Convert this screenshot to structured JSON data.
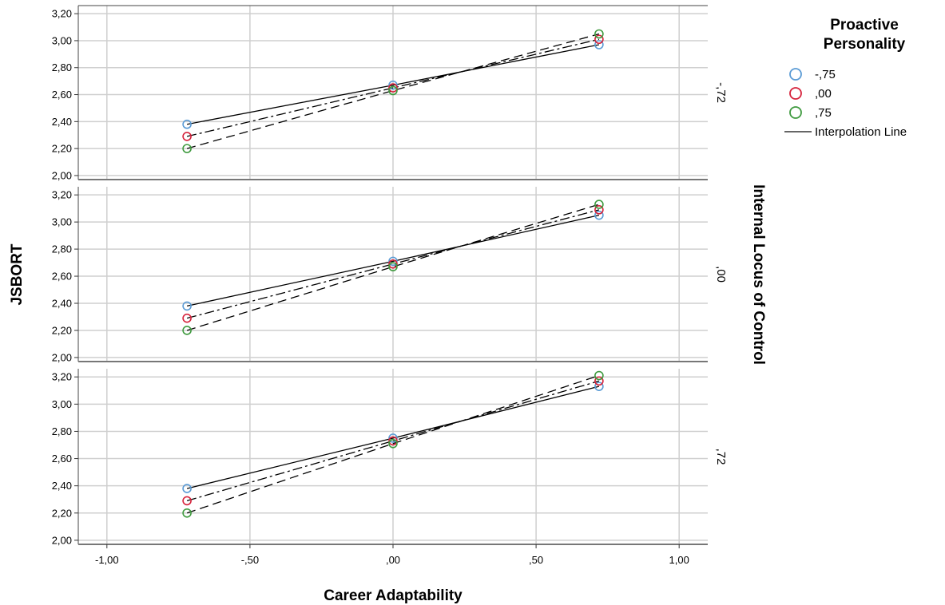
{
  "chart_data": {
    "type": "line",
    "xlabel": "Career Adaptability",
    "ylabel": "JSBORT",
    "panel_axis_label": "Internal Locus of Control",
    "xlim": [
      -1.1,
      1.1
    ],
    "ylim": [
      1.97,
      3.26
    ],
    "x_ticks": [
      -1.0,
      -0.5,
      0.0,
      0.5,
      1.0
    ],
    "x_tick_labels": [
      "-1,00",
      "-,50",
      ",00",
      ",50",
      "1,00"
    ],
    "y_ticks": [
      2.0,
      2.2,
      2.4,
      2.6,
      2.8,
      3.0,
      3.2
    ],
    "y_tick_labels": [
      "2,00",
      "2,20",
      "2,40",
      "2,60",
      "2,80",
      "3,00",
      "3,20"
    ],
    "grid": true,
    "legend": {
      "title": "Proactive Personality",
      "position": "right",
      "entries": [
        {
          "label": "-,75",
          "color": "#5b9bd5"
        },
        {
          "label": ",00",
          "color": "#d6233c"
        },
        {
          "label": ",75",
          "color": "#3f9a3f"
        }
      ],
      "line_label": "Interpolation Line"
    },
    "panels": [
      {
        "label": "-,72",
        "x": [
          -0.72,
          0.0,
          0.72
        ],
        "series": [
          {
            "name": "-,75",
            "values": [
              2.38,
              2.67,
              2.97
            ],
            "color": "#5b9bd5",
            "dash": "solid"
          },
          {
            "name": ",00",
            "values": [
              2.29,
              2.65,
              3.01
            ],
            "color": "#d6233c",
            "dash": "dashdot"
          },
          {
            "name": ",75",
            "values": [
              2.2,
              2.63,
              3.05
            ],
            "color": "#3f9a3f",
            "dash": "dashed"
          }
        ]
      },
      {
        "label": ",00",
        "x": [
          -0.72,
          0.0,
          0.72
        ],
        "series": [
          {
            "name": "-,75",
            "values": [
              2.38,
              2.71,
              3.05
            ],
            "color": "#5b9bd5",
            "dash": "solid"
          },
          {
            "name": ",00",
            "values": [
              2.29,
              2.69,
              3.09
            ],
            "color": "#d6233c",
            "dash": "dashdot"
          },
          {
            "name": ",75",
            "values": [
              2.2,
              2.67,
              3.13
            ],
            "color": "#3f9a3f",
            "dash": "dashed"
          }
        ]
      },
      {
        "label": ",72",
        "x": [
          -0.72,
          0.0,
          0.72
        ],
        "series": [
          {
            "name": "-,75",
            "values": [
              2.38,
              2.75,
              3.13
            ],
            "color": "#5b9bd5",
            "dash": "solid"
          },
          {
            "name": ",00",
            "values": [
              2.29,
              2.73,
              3.17
            ],
            "color": "#d6233c",
            "dash": "dashdot"
          },
          {
            "name": ",75",
            "values": [
              2.2,
              2.71,
              3.21
            ],
            "color": "#3f9a3f",
            "dash": "dashed"
          }
        ]
      }
    ]
  }
}
